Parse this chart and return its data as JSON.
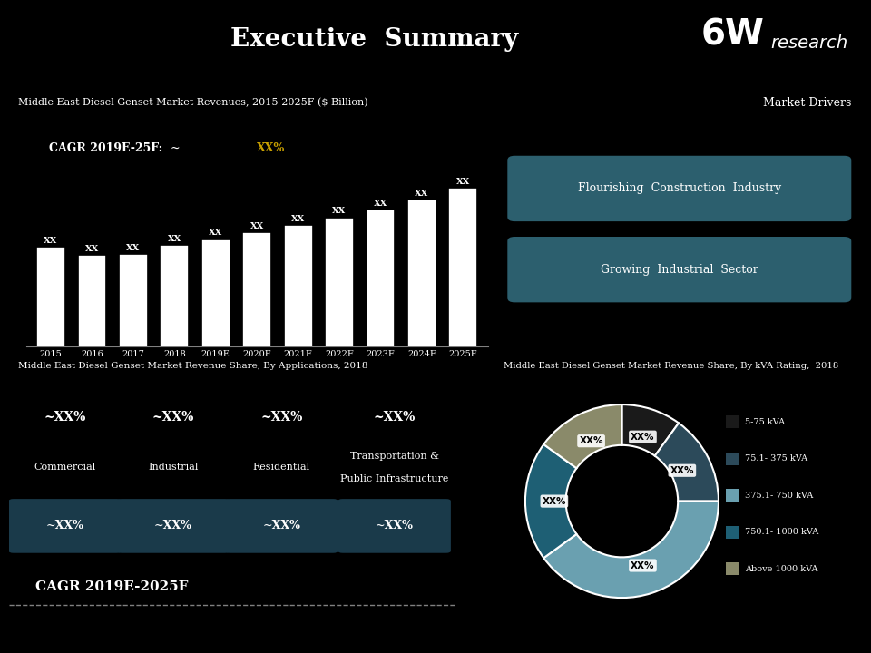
{
  "title": "Executive  Summary",
  "bg_color": "#000000",
  "header_bg": "#2c4a5a",
  "header_text_color": "#ffffff",
  "bar_title": "Middle East Diesel Genset Market Revenues, 2015-2025F ($ Billion)",
  "bar_years": [
    "2015",
    "2016",
    "2017",
    "2018",
    "2019E",
    "2020F",
    "2021F",
    "2022F",
    "2023F",
    "2024F",
    "2025F"
  ],
  "bar_values": [
    1.0,
    0.92,
    0.93,
    1.02,
    1.08,
    1.15,
    1.22,
    1.3,
    1.38,
    1.48,
    1.6
  ],
  "bar_color": "#ffffff",
  "bar_edge_color": "#000000",
  "cagr_color_highlight": "#c8a000",
  "bar_label": "XX",
  "market_drivers_title": "Market Drivers",
  "market_drivers": [
    "Flourishing  Construction  Industry",
    "Growing  Industrial  Sector"
  ],
  "drivers_bg": "#2c5f6e",
  "app_title": "Middle East Diesel Genset Market Revenue Share, By Applications, 2018",
  "app_categories": [
    "Commercial",
    "Industrial",
    "Residential",
    "Transportation &\nPublic Infrastructure"
  ],
  "app_pct_top": [
    "~XX%",
    "~XX%",
    "~XX%",
    "~XX%"
  ],
  "app_pct_btn": [
    "~XX%",
    "~XX%",
    "~XX%",
    "~XX%"
  ],
  "app_btn_color": "#1a3a4a",
  "app_cagr_label": "CAGR 2019E-2025F",
  "kva_title": "Middle East Diesel Genset Market Revenue Share, By kVA Rating,  2018",
  "kva_labels": [
    "5-75 kVA",
    "75.1- 375 kVA",
    "375.1- 750 kVA",
    "750.1- 1000 kVA",
    "Above 1000 kVA"
  ],
  "kva_values": [
    10,
    15,
    40,
    20,
    15
  ],
  "kva_colors": [
    "#1a1a1a",
    "#2c4a5a",
    "#6aa0b0",
    "#1e5f74",
    "#8a8a6a"
  ],
  "kva_pct_labels": [
    "XX%",
    "XX%",
    "XX%",
    "XX%",
    "XX%"
  ],
  "logo_bg": "#2c3e50",
  "logo_text_big": "6W",
  "logo_text_small": "research"
}
